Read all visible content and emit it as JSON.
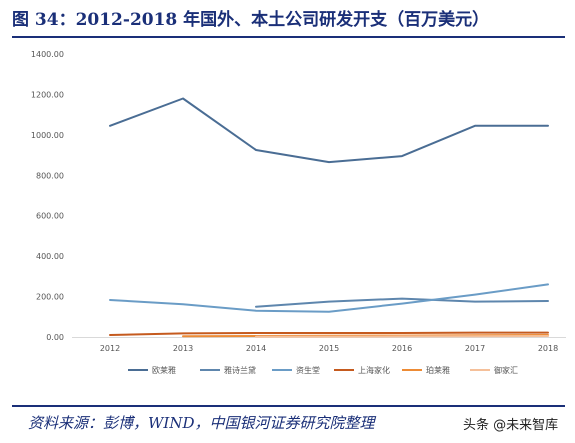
{
  "header": {
    "title": "图 34：2012-2018 年国外、本土公司研发开支（百万美元）"
  },
  "footer": {
    "source": "资料来源：彭博，WIND，中国银河证券研究院整理",
    "watermark": "头条 @未来智库"
  },
  "chart_data": {
    "type": "line",
    "title": "",
    "xlabel": "",
    "ylabel": "",
    "x": [
      "2012",
      "2013",
      "2014",
      "2015",
      "2016",
      "2017",
      "2018"
    ],
    "ylim": [
      0,
      1400
    ],
    "yticks": [
      "0.00",
      "200.00",
      "400.00",
      "600.00",
      "800.00",
      "1000.00",
      "1200.00",
      "1400.00"
    ],
    "legend_position": "bottom",
    "grid": false,
    "series": [
      {
        "name": "欧莱雅",
        "color": "#4a6d94",
        "values": [
          1045,
          1180,
          925,
          865,
          895,
          1045,
          1045
        ]
      },
      {
        "name": "雅诗兰黛",
        "color": "#5e86ad",
        "values": [
          null,
          null,
          150,
          175,
          190,
          175,
          178
        ]
      },
      {
        "name": "资生堂",
        "color": "#6a9cc6",
        "values": [
          183,
          162,
          130,
          125,
          165,
          210,
          260
        ]
      },
      {
        "name": "上海家化",
        "color": "#c55a1e",
        "values": [
          10,
          18,
          20,
          20,
          20,
          22,
          22
        ]
      },
      {
        "name": "珀莱雅",
        "color": "#ed8b35",
        "values": [
          null,
          4,
          5,
          6,
          7,
          9,
          10
        ]
      },
      {
        "name": "御家汇",
        "color": "#f5c09a",
        "values": [
          null,
          null,
          1,
          2,
          3,
          4,
          5
        ]
      }
    ]
  }
}
